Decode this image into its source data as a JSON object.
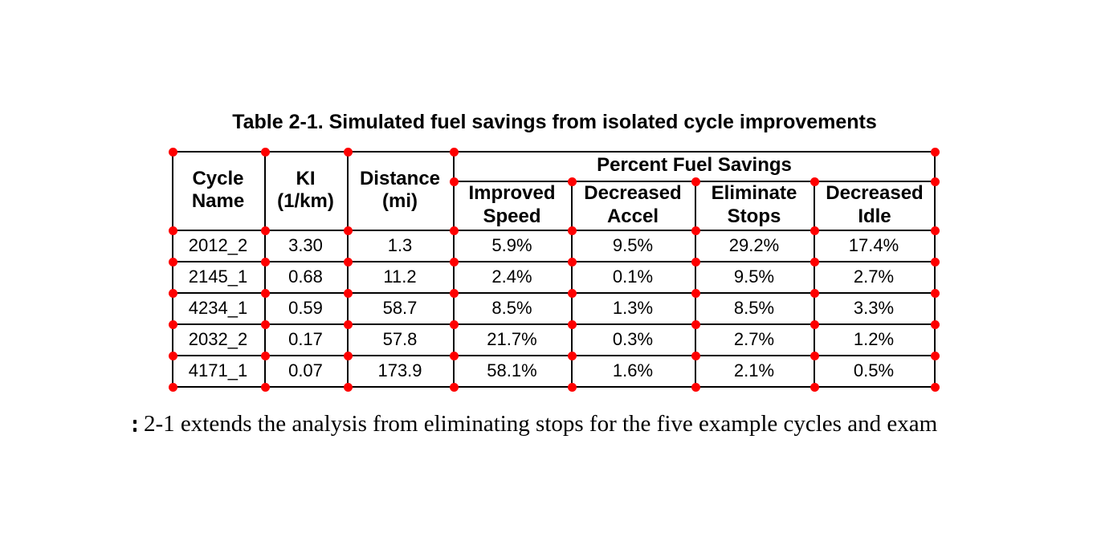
{
  "title": "Table 2-1. Simulated fuel savings from isolated cycle improvements",
  "table": {
    "header": {
      "cycle_name": "Cycle\nName",
      "ki": "KI\n(1/km)",
      "distance": "Distance\n(mi)",
      "group": "Percent Fuel Savings",
      "improved_speed": "Improved\nSpeed",
      "decreased_accel": "Decreased\nAccel",
      "eliminate_stops": "Eliminate\nStops",
      "decreased_idle": "Decreased\nIdle"
    },
    "rows": [
      [
        "2012_2",
        "3.30",
        "1.3",
        "5.9%",
        "9.5%",
        "29.2%",
        "17.4%"
      ],
      [
        "2145_1",
        "0.68",
        "11.2",
        "2.4%",
        "0.1%",
        "9.5%",
        "2.7%"
      ],
      [
        "4234_1",
        "0.59",
        "58.7",
        "8.5%",
        "1.3%",
        "8.5%",
        "3.3%"
      ],
      [
        "2032_2",
        "0.17",
        "57.8",
        "21.7%",
        "0.3%",
        "2.7%",
        "1.2%"
      ],
      [
        "4171_1",
        "0.07",
        "173.9",
        "58.1%",
        "1.6%",
        "2.1%",
        "0.5%"
      ]
    ]
  },
  "bottom_text": "2-1 extends the analysis from eliminating stops for the five example cycles and exam",
  "colors": {
    "corner_dot": "#fe0000",
    "grid_line": "#000000",
    "text": "#000000",
    "background": "#ffffff"
  }
}
